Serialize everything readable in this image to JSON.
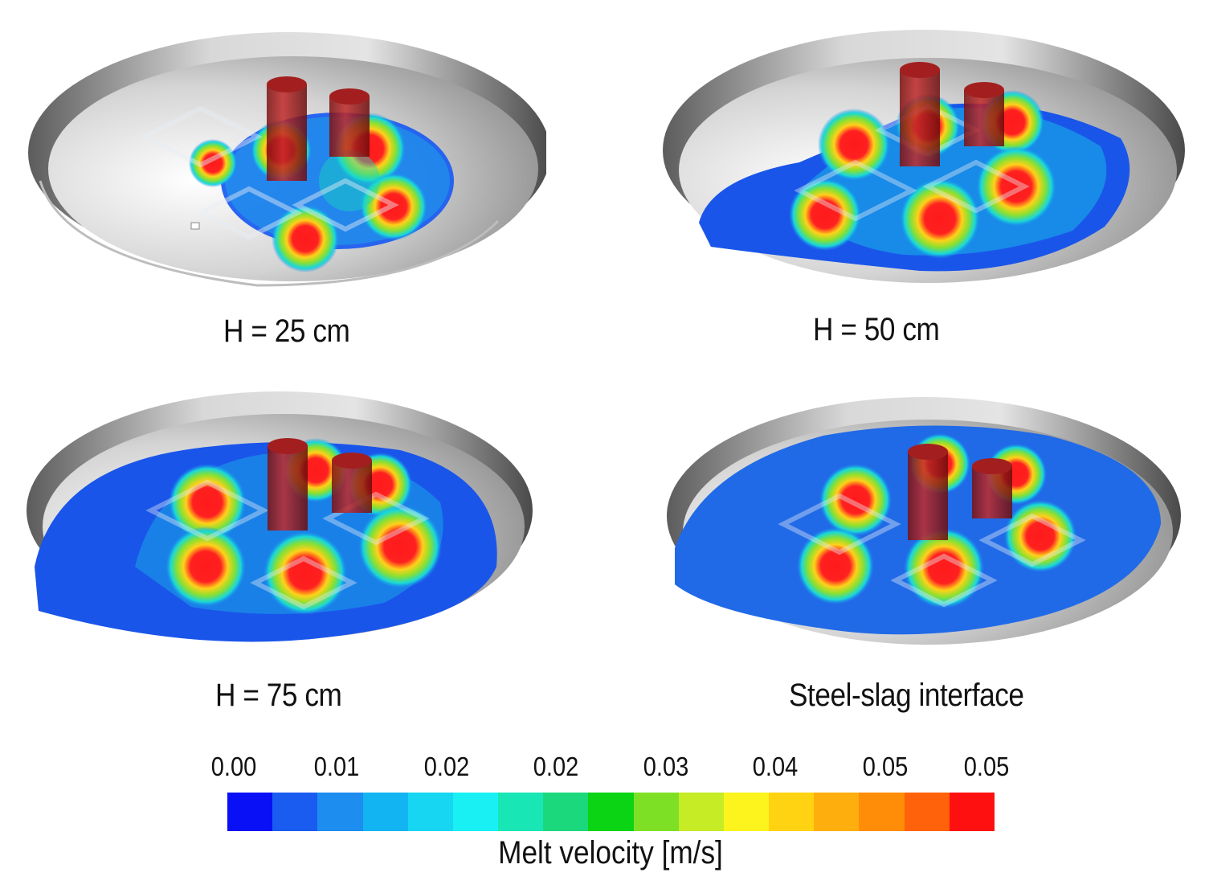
{
  "panels": [
    {
      "id": "p1",
      "caption": "H = 25 cm"
    },
    {
      "id": "p2",
      "caption": "H = 50 cm"
    },
    {
      "id": "p3",
      "caption": "H = 75 cm"
    },
    {
      "id": "p4",
      "caption": "Steel-slag interface"
    }
  ],
  "legend": {
    "title": "Melt velocity [m/s]",
    "ticks": [
      "0.00",
      "0.01",
      "0.02",
      "0.02",
      "0.03",
      "0.04",
      "0.05",
      "0.05"
    ],
    "colors": [
      "#0a10f5",
      "#1a5cf0",
      "#1d8df0",
      "#13b4f2",
      "#16d6f2",
      "#18f0f4",
      "#18e6b5",
      "#1cd87c",
      "#0ad414",
      "#7ee025",
      "#c6ec25",
      "#fcf41c",
      "#ffd312",
      "#ffaf0d",
      "#ff8d08",
      "#ff620a",
      "#ff1010"
    ]
  }
}
